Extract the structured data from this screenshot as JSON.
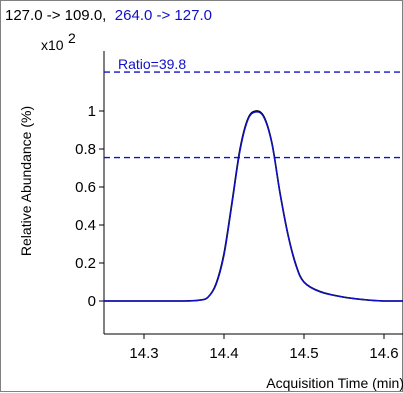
{
  "chart_data": {
    "type": "line",
    "title_parts": [
      {
        "text": "127.0 -> 109.0,",
        "color": "#000000"
      },
      {
        "text": "264.0 -> 127.0",
        "color": "#1010c8"
      }
    ],
    "ylabel": "Relative Abundance (%)",
    "y_multiplier": "x10",
    "y_multiplier_exp": "2",
    "xlabel": "Acquisition Time (min)",
    "x_ticks": [
      {
        "value": 14.3,
        "label": "14.3"
      },
      {
        "value": 14.4,
        "label": "14.4"
      },
      {
        "value": 14.5,
        "label": "14.5"
      },
      {
        "value": 14.6,
        "label": "14.6"
      }
    ],
    "y_ticks": [
      {
        "value": 0,
        "label": "0"
      },
      {
        "value": 0.2,
        "label": "0.2"
      },
      {
        "value": 0.4,
        "label": "0.4"
      },
      {
        "value": 0.6,
        "label": "0.6"
      },
      {
        "value": 0.8,
        "label": "0.8"
      },
      {
        "value": 1.0,
        "label": "1"
      }
    ],
    "xlim": [
      14.25,
      14.625
    ],
    "ylim": [
      -0.1,
      1.2
    ],
    "reference_lines": [
      {
        "y": 1.205,
        "label": "Ratio=39.8",
        "color": "#1010c8",
        "style": "dashed"
      },
      {
        "y": 0.755,
        "label": "",
        "color": "#1010c8",
        "style": "dashed"
      }
    ],
    "series": [
      {
        "color": "#000000",
        "x": [
          14.25,
          14.3,
          14.35,
          14.37,
          14.38,
          14.39,
          14.4,
          14.41,
          14.42,
          14.43,
          14.44,
          14.45,
          14.46,
          14.47,
          14.48,
          14.49,
          14.5,
          14.52,
          14.55,
          14.58,
          14.6,
          14.625
        ],
        "y": [
          0.0,
          0.0,
          0.0,
          0.005,
          0.02,
          0.09,
          0.25,
          0.52,
          0.8,
          0.96,
          1.0,
          0.97,
          0.83,
          0.57,
          0.35,
          0.19,
          0.1,
          0.05,
          0.02,
          0.005,
          0.0,
          0.0
        ]
      },
      {
        "color": "#1010c8",
        "x": [
          14.25,
          14.3,
          14.35,
          14.37,
          14.38,
          14.39,
          14.4,
          14.41,
          14.42,
          14.43,
          14.44,
          14.45,
          14.46,
          14.47,
          14.48,
          14.49,
          14.5,
          14.52,
          14.55,
          14.58,
          14.6,
          14.625
        ],
        "y": [
          0.0,
          0.0,
          0.0,
          0.004,
          0.02,
          0.085,
          0.24,
          0.51,
          0.79,
          0.955,
          0.995,
          0.965,
          0.825,
          0.565,
          0.345,
          0.185,
          0.098,
          0.048,
          0.02,
          0.005,
          0.0,
          0.0
        ]
      }
    ]
  }
}
